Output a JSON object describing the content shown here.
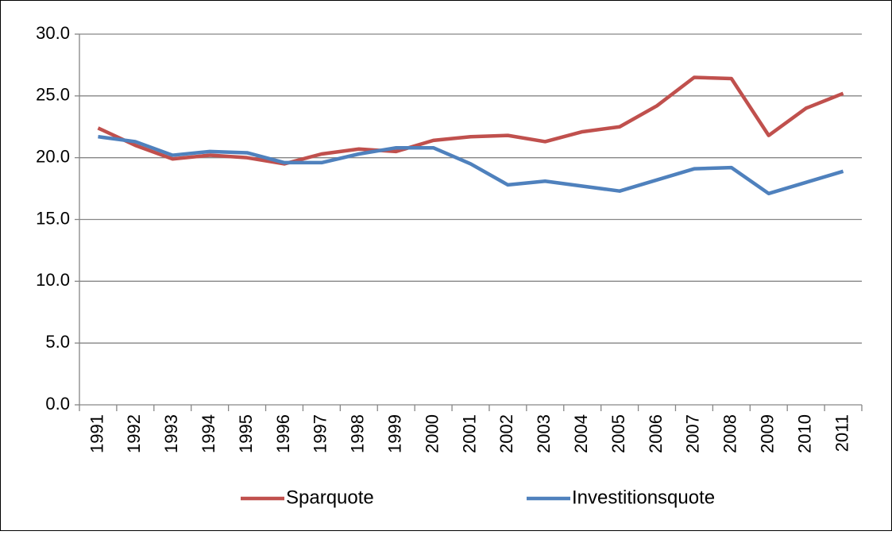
{
  "chart_data": {
    "type": "line",
    "categories": [
      "1991",
      "1992",
      "1993",
      "1994",
      "1995",
      "1996",
      "1997",
      "1998",
      "1999",
      "2000",
      "2001",
      "2002",
      "2003",
      "2004",
      "2005",
      "2006",
      "2007",
      "2008",
      "2009",
      "2010",
      "2011"
    ],
    "series": [
      {
        "name": "Sparquote",
        "color": "#c0504d",
        "values": [
          22.4,
          21.0,
          19.9,
          20.2,
          20.0,
          19.5,
          20.3,
          20.7,
          20.5,
          21.4,
          21.7,
          21.8,
          21.3,
          22.1,
          22.5,
          24.2,
          26.5,
          26.4,
          21.8,
          24.0,
          25.2
        ]
      },
      {
        "name": "Investitionsquote",
        "color": "#4f81bd",
        "values": [
          21.7,
          21.3,
          20.2,
          20.5,
          20.4,
          19.6,
          19.6,
          20.3,
          20.8,
          20.8,
          19.5,
          17.8,
          18.1,
          17.7,
          17.3,
          18.2,
          19.1,
          19.2,
          17.1,
          18.0,
          18.9
        ]
      }
    ],
    "ylim": [
      0,
      30
    ],
    "yticks": [
      {
        "value": 0,
        "label": "0.0"
      },
      {
        "value": 5,
        "label": "5.0"
      },
      {
        "value": 10,
        "label": "10.0"
      },
      {
        "value": 15,
        "label": "15.0"
      },
      {
        "value": 20,
        "label": "20.0"
      },
      {
        "value": 25,
        "label": "25.0"
      },
      {
        "value": 30,
        "label": "30.0"
      }
    ],
    "grid": true,
    "legend": "bottom"
  }
}
